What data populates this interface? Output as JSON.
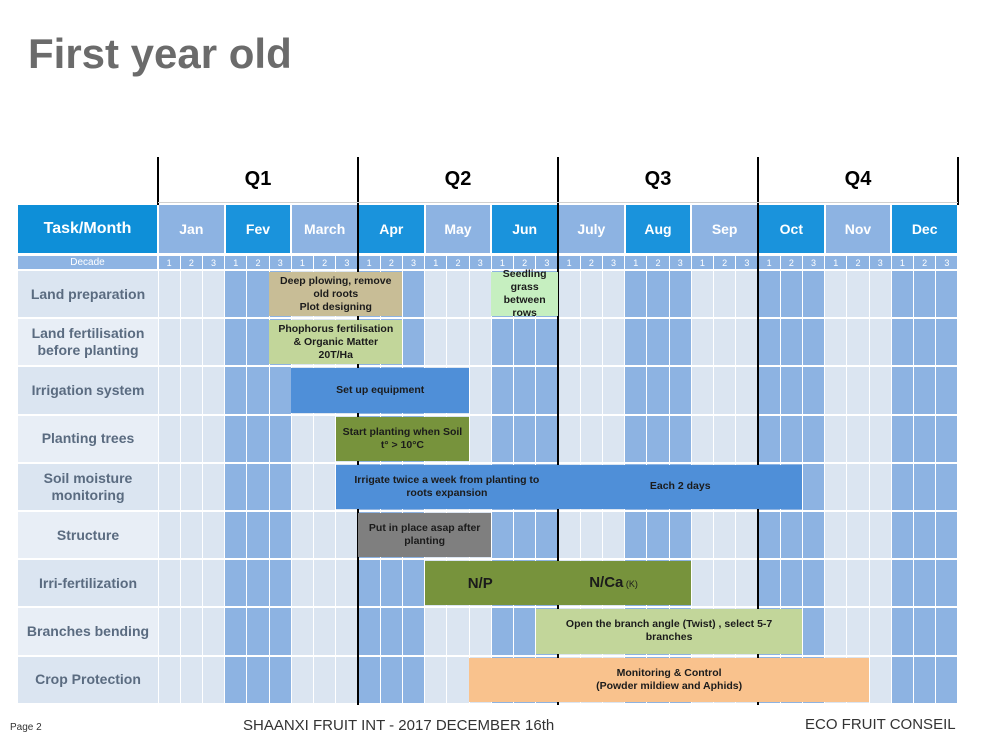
{
  "title": "First year old",
  "header": {
    "task_label": "Task/Month",
    "decade_label": "Decade",
    "quarters": [
      "Q1",
      "Q2",
      "Q3",
      "Q4"
    ],
    "months": [
      "Jan",
      "Fev",
      "March",
      "Apr",
      "May",
      "Jun",
      "July",
      "Aug",
      "Sep",
      "Oct",
      "Nov",
      "Dec"
    ],
    "decades": [
      "1",
      "2",
      "3"
    ]
  },
  "tasks": [
    "Land preparation",
    "Land fertilisation before planting",
    "Irrigation system",
    "Planting trees",
    "Soil moisture monitoring",
    "Structure",
    "Irri-fertilization",
    "Branches bending",
    "Crop Protection"
  ],
  "bars": [
    {
      "row": 0,
      "start": 5,
      "end": 11,
      "line1": "Deep plowing, remove",
      "line2": "old roots",
      "line3": "Plot designing",
      "color": "#c8bd96"
    },
    {
      "row": 0,
      "start": 15,
      "end": 18,
      "line1": "Seedling grass",
      "line2": "between rows",
      "line3": "",
      "color": "#c6efc0"
    },
    {
      "row": 1,
      "start": 5,
      "end": 11,
      "line1": "Phophorus fertilisation",
      "line2": "& Organic Matter",
      "line3": "20T/Ha",
      "color": "#c2d69a"
    },
    {
      "row": 2,
      "start": 6,
      "end": 14,
      "line1": "Set up equipment",
      "line2": "",
      "line3": "",
      "color": "#4f8fd8"
    },
    {
      "row": 3,
      "start": 8,
      "end": 14,
      "line1": "Start planting when Soil",
      "line2": "t° > 10°C",
      "line3": "",
      "color": "#77933c"
    },
    {
      "row": 4,
      "start": 8,
      "end": 18,
      "line1": "Irrigate twice a week from planting to",
      "line2": "roots expansion",
      "line3": "",
      "color": "#4f8fd8"
    },
    {
      "row": 4,
      "start": 18,
      "end": 29,
      "line1": "Each 2 days",
      "line2": "",
      "line3": "",
      "color": "#4f8fd8"
    },
    {
      "row": 5,
      "start": 9,
      "end": 15,
      "line1": "Put in place asap after",
      "line2": "planting",
      "line3": "",
      "color": "#7f7f7f"
    },
    {
      "row": 6,
      "start": 12,
      "end": 17,
      "line1": "N/P",
      "line2": "",
      "line3": "",
      "color": "#77933c",
      "big": true
    },
    {
      "row": 6,
      "start": 17,
      "end": 24,
      "line1": "N/Ca",
      "line2": "",
      "line3": "",
      "small": "(K)",
      "color": "#77933c",
      "big": true
    },
    {
      "row": 7,
      "start": 17,
      "end": 29,
      "line1": "Open the branch angle (Twist) , select 5-7",
      "line2": "branches",
      "line3": "",
      "color": "#c2d69a"
    },
    {
      "row": 8,
      "start": 14,
      "end": 32,
      "line1": "Monitoring & Control",
      "line2": "(Powder mildiew and Aphids)",
      "line3": "",
      "color": "#f9c28d"
    }
  ],
  "colors": {
    "header_blue": "#0e8fd8",
    "month_light": "#8eb4e3",
    "month_mid": "#9dc3e6",
    "cell_blue": "#8db3e2",
    "cell_light": "#d9e4f2",
    "task_bg_a": "#dbe5f1",
    "task_bg_b": "#e8eef6"
  },
  "footer": {
    "page": "Page 2",
    "center": "SHAANXI FRUIT INT -  2017 DECEMBER 16th",
    "right": "ECO FRUIT CONSEIL"
  }
}
